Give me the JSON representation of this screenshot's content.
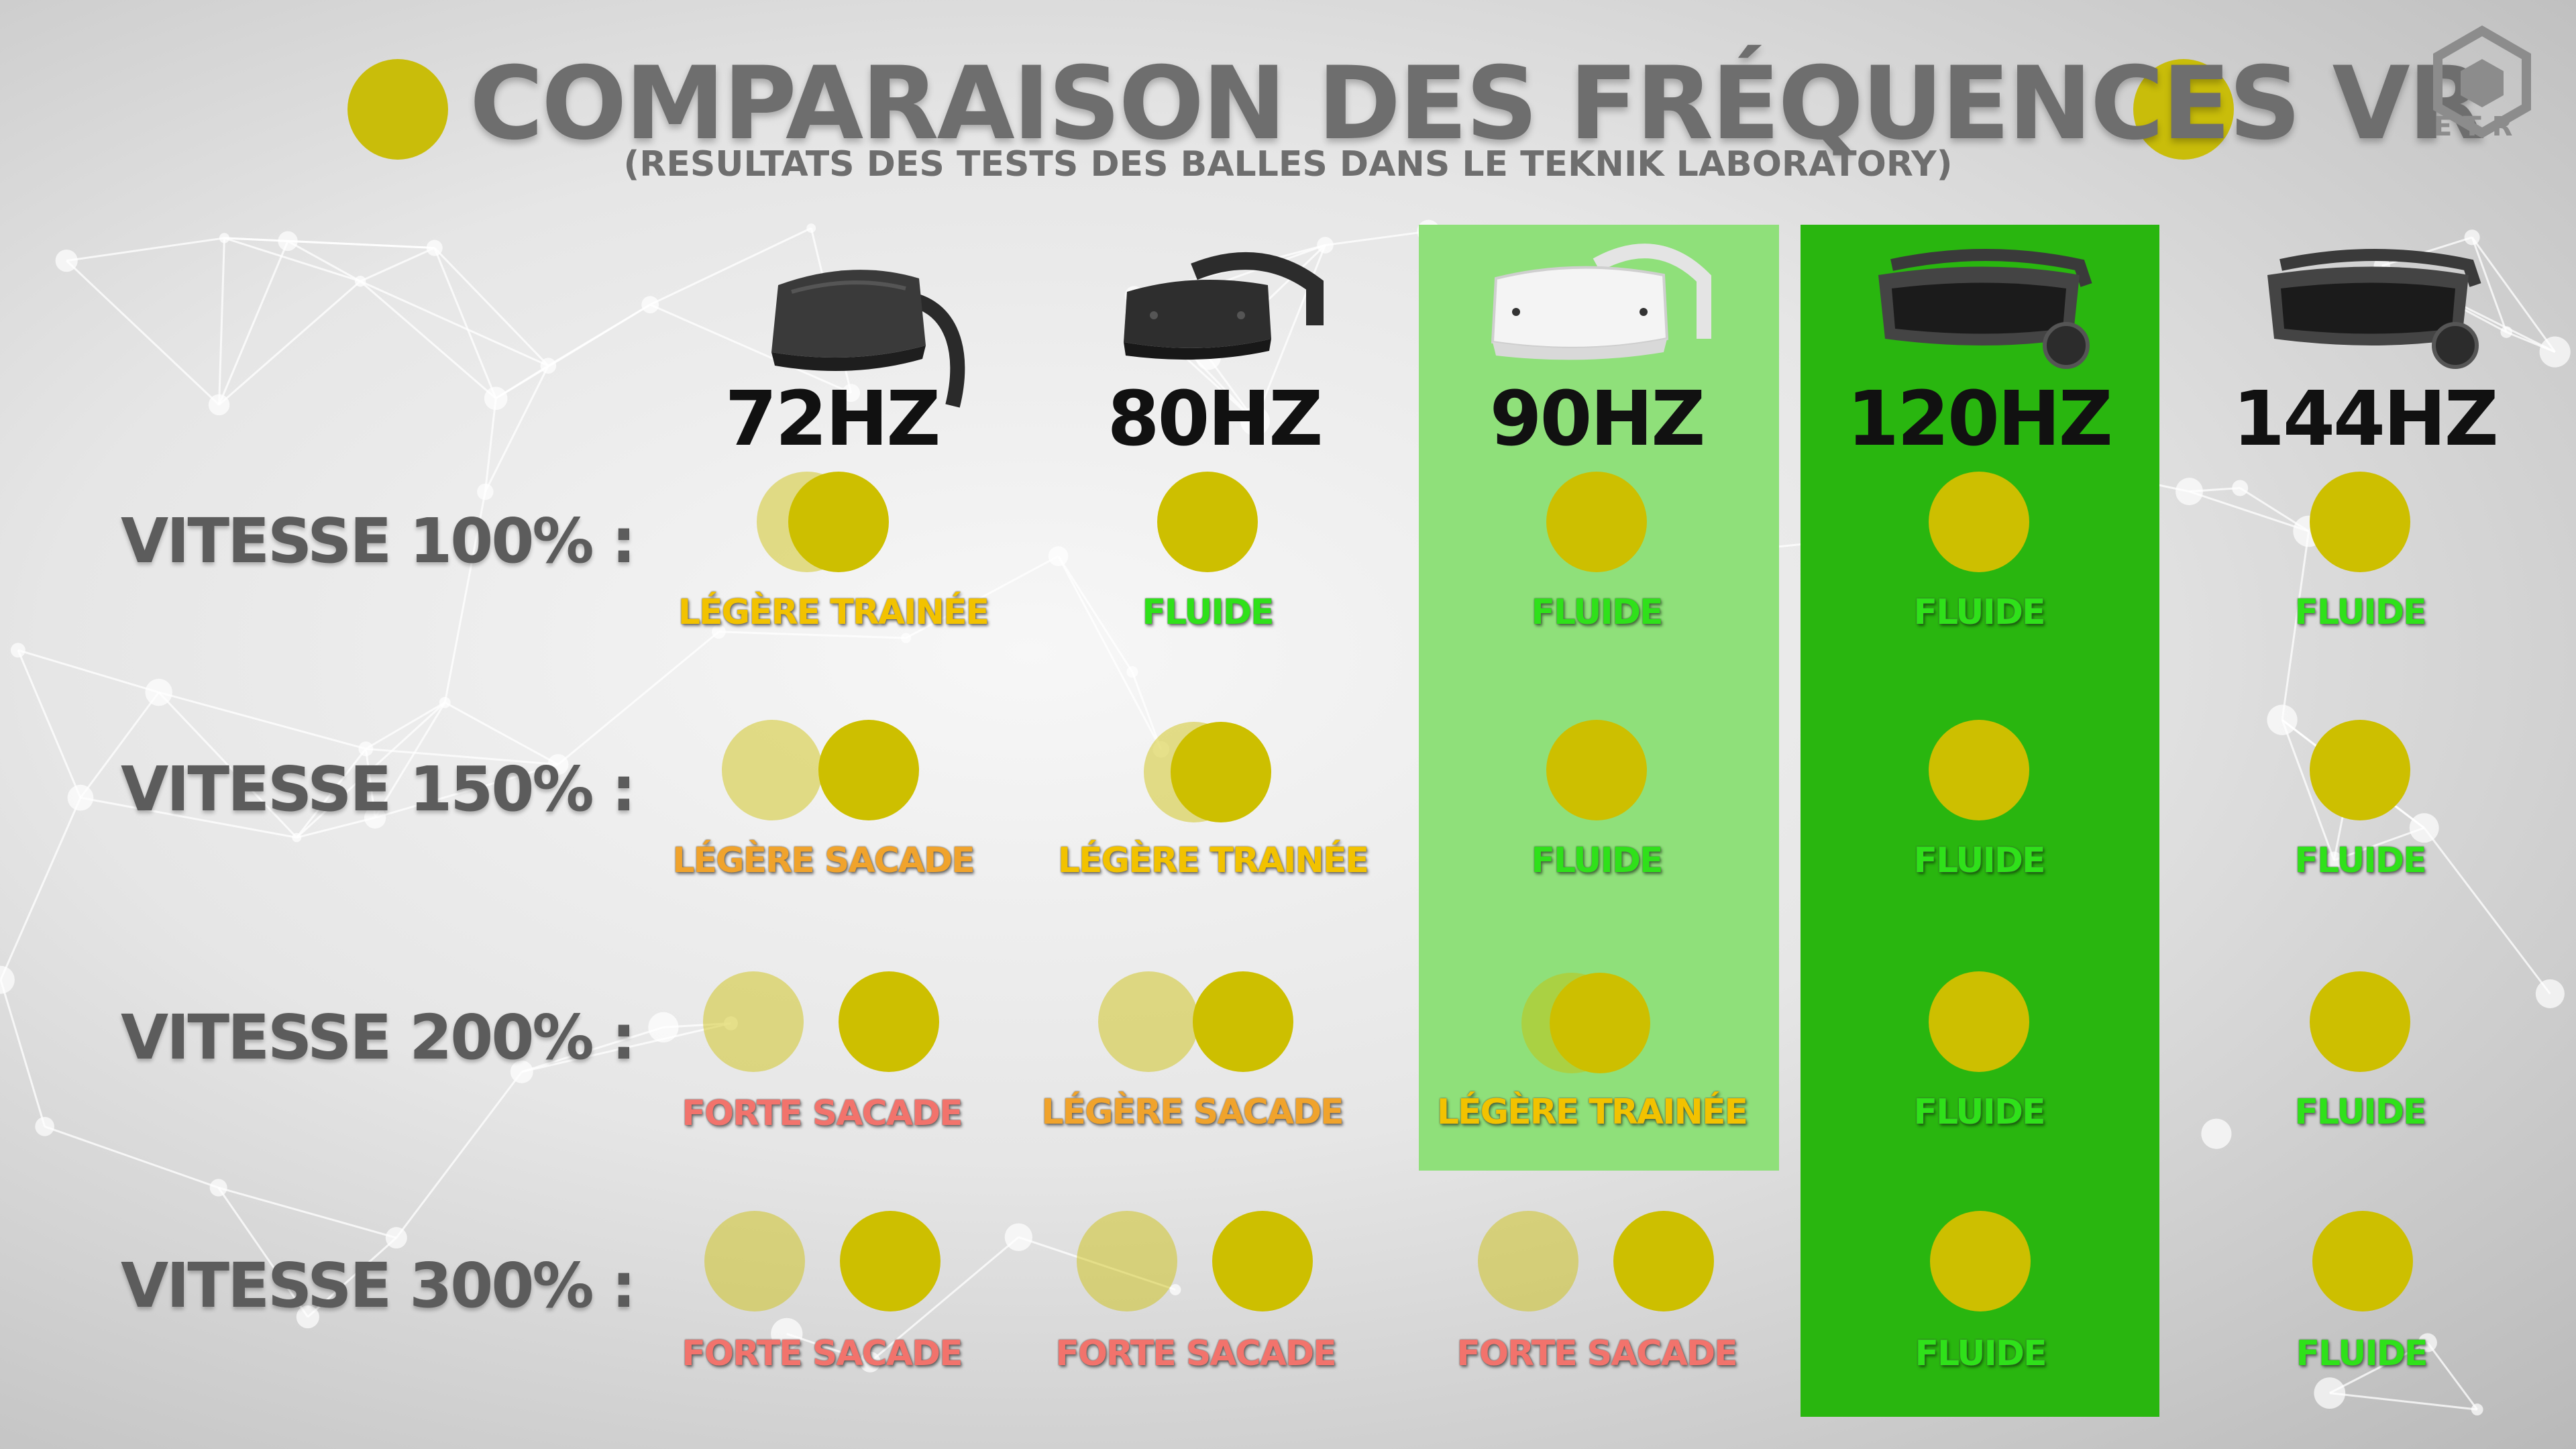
{
  "header": {
    "title": "COMPARAISON DES FRÉQUENCES VR",
    "subtitle": "(RESULTATS DES TESTS DES BALLES DANS LE TEKNIK LABORATORY)"
  },
  "logo": {
    "text": "ETR",
    "icon": "etr-logo-icon"
  },
  "colors": {
    "ball": "#cdbf00",
    "highlight_90hz": "#8fe07a",
    "highlight_120hz": "#29b60f",
    "fluide": "#2fe11a",
    "legere_trainee": "#f2c200",
    "legere_sacade": "#f0a32c",
    "forte_sacade": "#f2736c"
  },
  "columns": [
    {
      "label": "72HZ",
      "headset": "quest-headset-icon"
    },
    {
      "label": "80HZ",
      "headset": "rift-s-headset-icon"
    },
    {
      "label": "90HZ",
      "headset": "quest-2-headset-icon"
    },
    {
      "label": "120HZ",
      "headset": "index-headset-icon"
    },
    {
      "label": "144HZ",
      "headset": "index-headset-icon"
    }
  ],
  "rows": [
    {
      "label": "VITESSE 100% :",
      "results": [
        "LÉGÈRE TRAINÉE",
        "FLUIDE",
        "FLUIDE",
        "FLUIDE",
        "FLUIDE"
      ]
    },
    {
      "label": "VITESSE 150% :",
      "results": [
        "LÉGÈRE SACADE",
        "LÉGÈRE TRAINÉE",
        "FLUIDE",
        "FLUIDE",
        "FLUIDE"
      ]
    },
    {
      "label": "VITESSE 200% :",
      "results": [
        "FORTE SACADE",
        "LÉGÈRE SACADE",
        "LÉGÈRE TRAINÉE",
        "FLUIDE",
        "FLUIDE"
      ]
    },
    {
      "label": "VITESSE 300% :",
      "results": [
        "FORTE SACADE",
        "FORTE SACADE",
        "FORTE SACADE",
        "FLUIDE",
        "FLUIDE"
      ]
    }
  ]
}
